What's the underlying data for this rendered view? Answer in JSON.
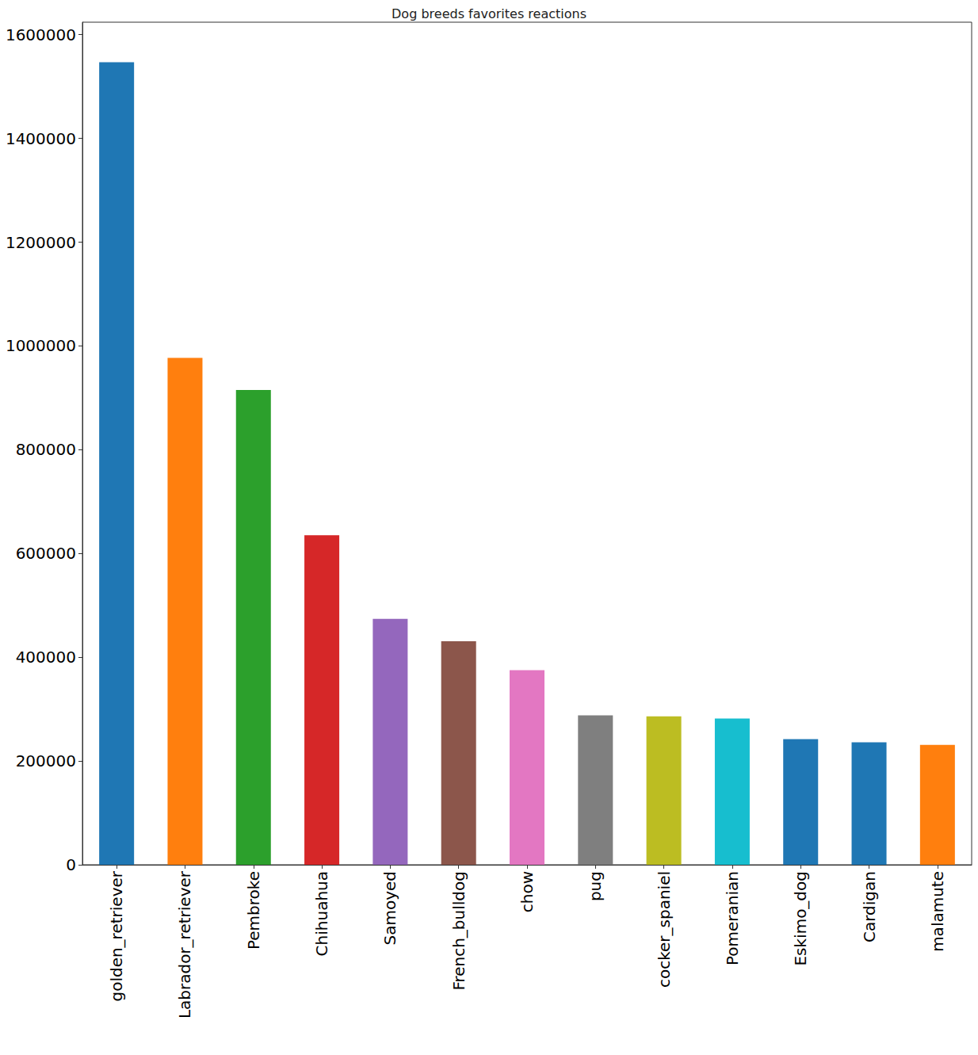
{
  "chart_data": {
    "type": "bar",
    "title": "Dog breeds favorites reactions",
    "categories": [
      "golden_retriever",
      "Labrador_retriever",
      "Pembroke",
      "Chihuahua",
      "Samoyed",
      "French_bulldog",
      "chow",
      "pug",
      "cocker_spaniel",
      "Pomeranian",
      "Eskimo_dog",
      "Cardigan",
      "malamute"
    ],
    "values": [
      1547000,
      977000,
      915000,
      635000,
      474000,
      431000,
      375000,
      288000,
      286000,
      282000,
      242000,
      236000,
      231000
    ],
    "colors": [
      "#1f77b4",
      "#ff7f0e",
      "#2ca02c",
      "#d62728",
      "#9467bd",
      "#8c564b",
      "#e377c2",
      "#7f7f7f",
      "#bcbd22",
      "#17becf",
      "#1f77b4",
      "#1f77b4",
      "#ff7f0e"
    ],
    "ylim": [
      0,
      1624000
    ],
    "yticks": [
      0,
      200000,
      400000,
      600000,
      800000,
      1000000,
      1200000,
      1400000,
      1600000
    ],
    "grid": false
  }
}
